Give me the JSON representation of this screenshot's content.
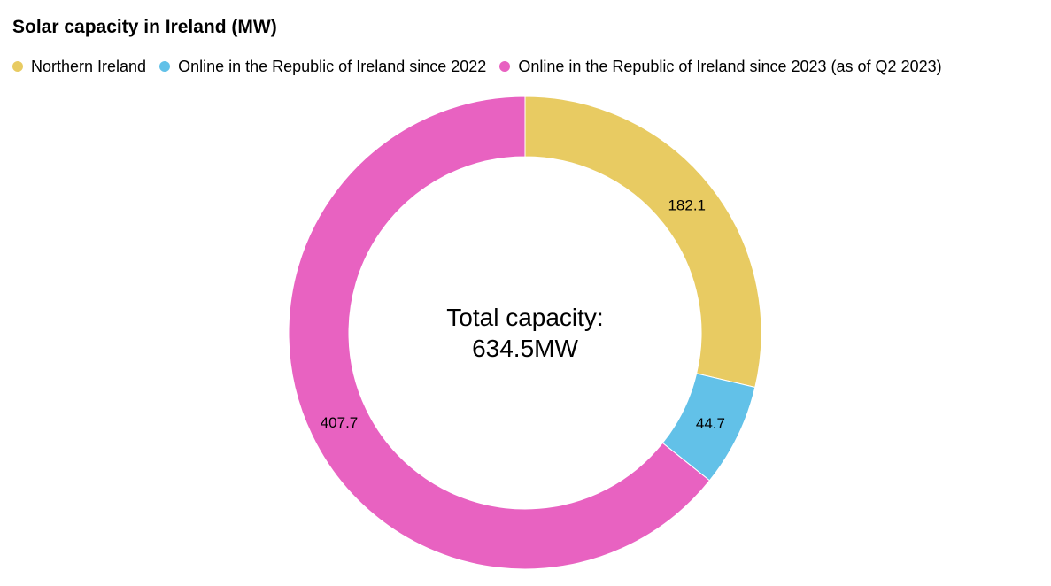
{
  "chart_data": {
    "type": "pie",
    "title": "Solar capacity in Ireland (MW)",
    "donut": true,
    "legend_position": "top-left",
    "slices": [
      {
        "name": "Northern Ireland",
        "value": 182.1,
        "label": "182.1",
        "color": "#E8CB62"
      },
      {
        "name": "Online in the Republic of Ireland since 2022",
        "value": 44.7,
        "label": "44.7",
        "color": "#62C1E8"
      },
      {
        "name": "Online in the Republic of Ireland since 2023 (as of Q2 2023)",
        "value": 407.7,
        "label": "407.7",
        "color": "#E862C1"
      }
    ],
    "center_label": {
      "line1": "Total capacity:",
      "line2": "634.5MW"
    }
  }
}
